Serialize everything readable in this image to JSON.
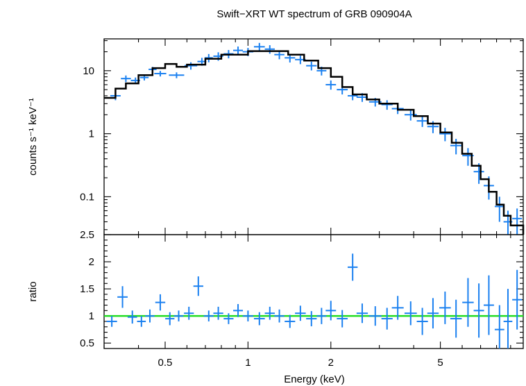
{
  "chart_data": [
    {
      "type": "scatter",
      "panel": "spectrum",
      "title": "Swift−XRT WT spectrum of GRB 090904A",
      "xlabel": "",
      "ylabel": "counts s⁻¹ keV⁻¹",
      "xscale": "log",
      "yscale": "log",
      "xlim": [
        0.3,
        10.0
      ],
      "ylim": [
        0.025,
        32
      ],
      "y_ticks": [
        {
          "v": 10,
          "label": "10"
        },
        {
          "v": 1,
          "label": "1"
        },
        {
          "v": 0.1,
          "label": "0.1"
        }
      ],
      "data_color": "#1a80f0",
      "model_color": "#000000",
      "series": [
        {
          "name": "data",
          "x": [
            0.33,
            0.36,
            0.39,
            0.42,
            0.45,
            0.48,
            0.55,
            0.62,
            0.68,
            0.72,
            0.78,
            0.85,
            0.92,
            1.0,
            1.1,
            1.2,
            1.3,
            1.42,
            1.55,
            1.7,
            1.85,
            2.0,
            2.2,
            2.4,
            2.6,
            2.9,
            3.2,
            3.5,
            3.9,
            4.3,
            4.7,
            5.2,
            5.7,
            6.3,
            6.9,
            7.5,
            8.2,
            8.8,
            9.5
          ],
          "y": [
            4.0,
            7.5,
            7.0,
            7.8,
            10.5,
            9.0,
            8.5,
            12.0,
            14.0,
            16.0,
            17.0,
            18.5,
            21.0,
            20.0,
            24.0,
            22.0,
            18.0,
            16.0,
            15.0,
            12.0,
            10.0,
            6.0,
            5.0,
            4.0,
            3.8,
            3.2,
            2.9,
            2.5,
            2.0,
            1.6,
            1.3,
            1.0,
            0.65,
            0.45,
            0.25,
            0.15,
            0.07,
            0.04,
            0.045
          ],
          "yerr": [
            0.6,
            0.9,
            0.8,
            0.8,
            1.0,
            0.9,
            0.9,
            1.6,
            2.0,
            2.4,
            2.6,
            2.8,
            3.2,
            3.0,
            3.6,
            3.4,
            2.8,
            2.5,
            2.3,
            1.9,
            1.6,
            1.0,
            0.8,
            0.6,
            0.6,
            0.5,
            0.5,
            0.45,
            0.38,
            0.32,
            0.28,
            0.24,
            0.18,
            0.14,
            0.09,
            0.06,
            0.03,
            0.02,
            0.02
          ]
        },
        {
          "name": "model",
          "x": [
            0.3,
            0.33,
            0.36,
            0.4,
            0.45,
            0.5,
            0.55,
            0.6,
            0.7,
            0.8,
            1.0,
            1.2,
            1.4,
            1.6,
            1.8,
            2.0,
            2.2,
            2.4,
            2.7,
            3.0,
            3.5,
            4.0,
            4.5,
            5.0,
            5.5,
            6.0,
            6.5,
            7.0,
            7.5,
            8.0,
            8.5,
            9.0,
            10.0
          ],
          "y": [
            3.7,
            5.2,
            6.3,
            8.5,
            11.0,
            12.8,
            11.5,
            12.5,
            15.5,
            18.0,
            20.5,
            20.5,
            18.0,
            14.5,
            11.0,
            8.0,
            5.5,
            4.2,
            3.5,
            3.0,
            2.4,
            1.9,
            1.45,
            1.05,
            0.72,
            0.48,
            0.31,
            0.19,
            0.12,
            0.075,
            0.05,
            0.035,
            0.025
          ]
        }
      ]
    },
    {
      "type": "scatter",
      "panel": "ratio",
      "xlabel": "Energy (keV)",
      "ylabel": "ratio",
      "xscale": "log",
      "yscale": "linear",
      "xlim": [
        0.3,
        10.0
      ],
      "ylim": [
        0.4,
        2.5
      ],
      "x_ticks": [
        {
          "v": 0.5,
          "label": "0.5"
        },
        {
          "v": 1,
          "label": "1"
        },
        {
          "v": 2,
          "label": "2"
        },
        {
          "v": 5,
          "label": "5"
        }
      ],
      "y_ticks": [
        {
          "v": 0.5,
          "label": "0.5"
        },
        {
          "v": 1,
          "label": "1"
        },
        {
          "v": 1.5,
          "label": "1.5"
        },
        {
          "v": 2,
          "label": "2"
        },
        {
          "v": 2.5,
          "label": "2.5"
        }
      ],
      "reference_line": 1.0,
      "reference_color": "#22dd22",
      "data_color": "#1a80f0",
      "series": [
        {
          "name": "ratio",
          "x": [
            0.32,
            0.35,
            0.38,
            0.41,
            0.44,
            0.48,
            0.52,
            0.56,
            0.61,
            0.66,
            0.72,
            0.78,
            0.85,
            0.92,
            1.0,
            1.1,
            1.2,
            1.3,
            1.42,
            1.55,
            1.7,
            1.85,
            2.0,
            2.2,
            2.4,
            2.6,
            2.9,
            3.2,
            3.5,
            3.9,
            4.3,
            4.7,
            5.2,
            5.7,
            6.3,
            6.9,
            7.5,
            8.2,
            8.8,
            9.5
          ],
          "y": [
            0.9,
            1.35,
            0.98,
            0.9,
            1.0,
            1.25,
            0.95,
            1.0,
            1.05,
            1.55,
            1.0,
            1.05,
            0.95,
            1.1,
            1.0,
            0.95,
            1.05,
            1.0,
            0.9,
            1.05,
            0.95,
            1.0,
            1.1,
            0.95,
            1.9,
            1.05,
            1.0,
            0.95,
            1.15,
            1.05,
            0.9,
            1.05,
            1.15,
            0.95,
            1.25,
            1.1,
            1.2,
            0.75,
            0.9,
            1.3
          ],
          "yerr": [
            0.1,
            0.2,
            0.12,
            0.1,
            0.12,
            0.15,
            0.12,
            0.1,
            0.12,
            0.18,
            0.1,
            0.12,
            0.1,
            0.12,
            0.1,
            0.12,
            0.12,
            0.12,
            0.12,
            0.14,
            0.14,
            0.15,
            0.18,
            0.16,
            0.25,
            0.18,
            0.18,
            0.2,
            0.22,
            0.22,
            0.25,
            0.28,
            0.3,
            0.35,
            0.45,
            0.5,
            0.55,
            0.45,
            0.6,
            0.55
          ]
        }
      ]
    }
  ]
}
